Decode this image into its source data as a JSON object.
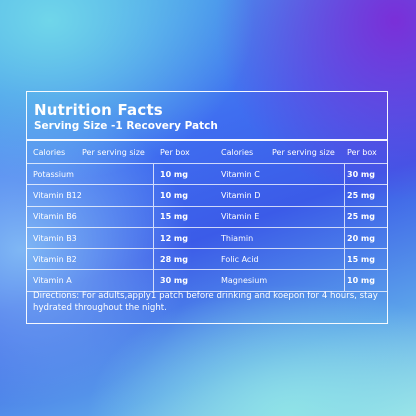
{
  "panel": {
    "title": "Nutrition Facts",
    "subtitle": "Serving Size -1 Recovery Patch",
    "columns": [
      "Calories",
      "Per serving size",
      "Per box",
      "Calories",
      "Per serving size",
      "Per box"
    ],
    "rows": [
      {
        "left_name": "Potassium",
        "left_serving": "",
        "left_box": "10 mg",
        "right_name": "Vitamin C",
        "right_serving": "",
        "right_box": "30 mg"
      },
      {
        "left_name": "Vitamin B12",
        "left_serving": "",
        "left_box": "10 mg",
        "right_name": "Vitamin D",
        "right_serving": "",
        "right_box": "25 mg"
      },
      {
        "left_name": "Vitamin B6",
        "left_serving": "",
        "left_box": "15 mg",
        "right_name": "Vitamin E",
        "right_serving": "",
        "right_box": "25 mg"
      },
      {
        "left_name": "Vitamin B3",
        "left_serving": "",
        "left_box": "12 mg",
        "right_name": "Thiamin",
        "right_serving": "",
        "right_box": "20 mg"
      },
      {
        "left_name": "Vitamin B2",
        "left_serving": "",
        "left_box": "28 mg",
        "right_name": "Folic Acid",
        "right_serving": "",
        "right_box": "15 mg"
      },
      {
        "left_name": "Vitamin A",
        "left_serving": "",
        "left_box": "30 mg",
        "right_name": "Magnesium",
        "right_serving": "",
        "right_box": "10 mg"
      }
    ],
    "directions": "Directions: For adults,apply1 patch before drinking and koepon for 4 hours, stay hydrated throughout the night."
  },
  "colors": {
    "text": "#ffffff",
    "background_top_left": "#6fd6ea",
    "background_top_right": "#7a2fd8",
    "background_center": "#3b5be8",
    "background_bottom": "#9fe6e9"
  }
}
